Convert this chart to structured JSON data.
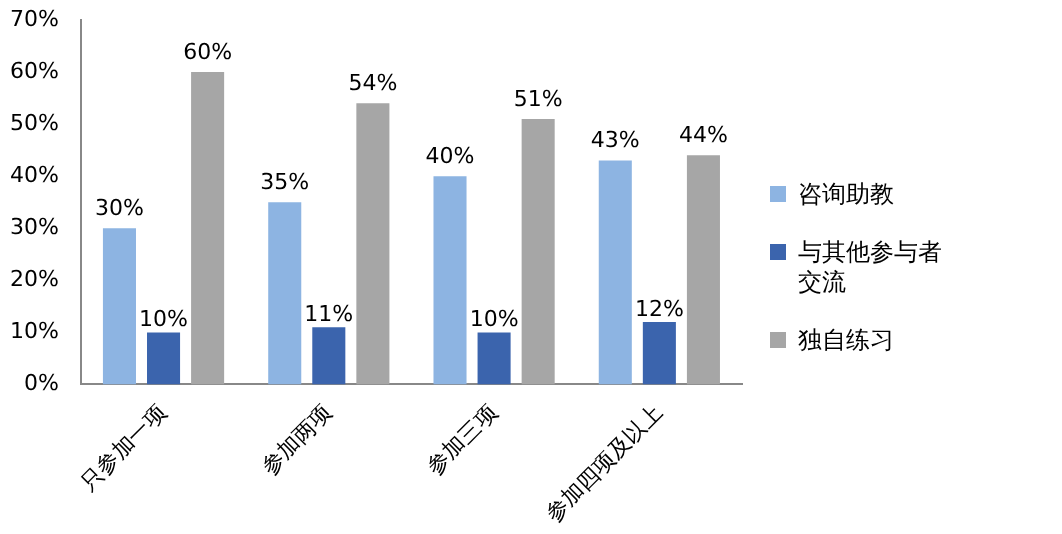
{
  "chart_data": {
    "type": "bar",
    "categories": [
      "只参加一项",
      "参加两项",
      "参加三项",
      "参加四项及以上"
    ],
    "series": [
      {
        "name": "咨询助教",
        "color": "#8db4e2",
        "values": [
          30,
          35,
          40,
          43
        ],
        "value_labels": [
          "30%",
          "35%",
          "40%",
          "43%"
        ]
      },
      {
        "name": "与其他参与者交流",
        "color": "#3b64ad",
        "values": [
          10,
          11,
          10,
          12
        ],
        "value_labels": [
          "10%",
          "11%",
          "10%",
          "12%"
        ]
      },
      {
        "name": "独自练习",
        "color": "#a6a6a6",
        "values": [
          60,
          54,
          51,
          44
        ],
        "value_labels": [
          "60%",
          "54%",
          "51%",
          "44%"
        ]
      }
    ],
    "ylim": [
      0,
      70
    ],
    "yticks": [
      {
        "value": 0,
        "label": "0%"
      },
      {
        "value": 10,
        "label": "10%"
      },
      {
        "value": 20,
        "label": "20%"
      },
      {
        "value": 30,
        "label": "30%"
      },
      {
        "value": 40,
        "label": "40%"
      },
      {
        "value": 50,
        "label": "50%"
      },
      {
        "value": 60,
        "label": "60%"
      },
      {
        "value": 70,
        "label": "70%"
      }
    ],
    "grid": false,
    "legend": "right"
  }
}
